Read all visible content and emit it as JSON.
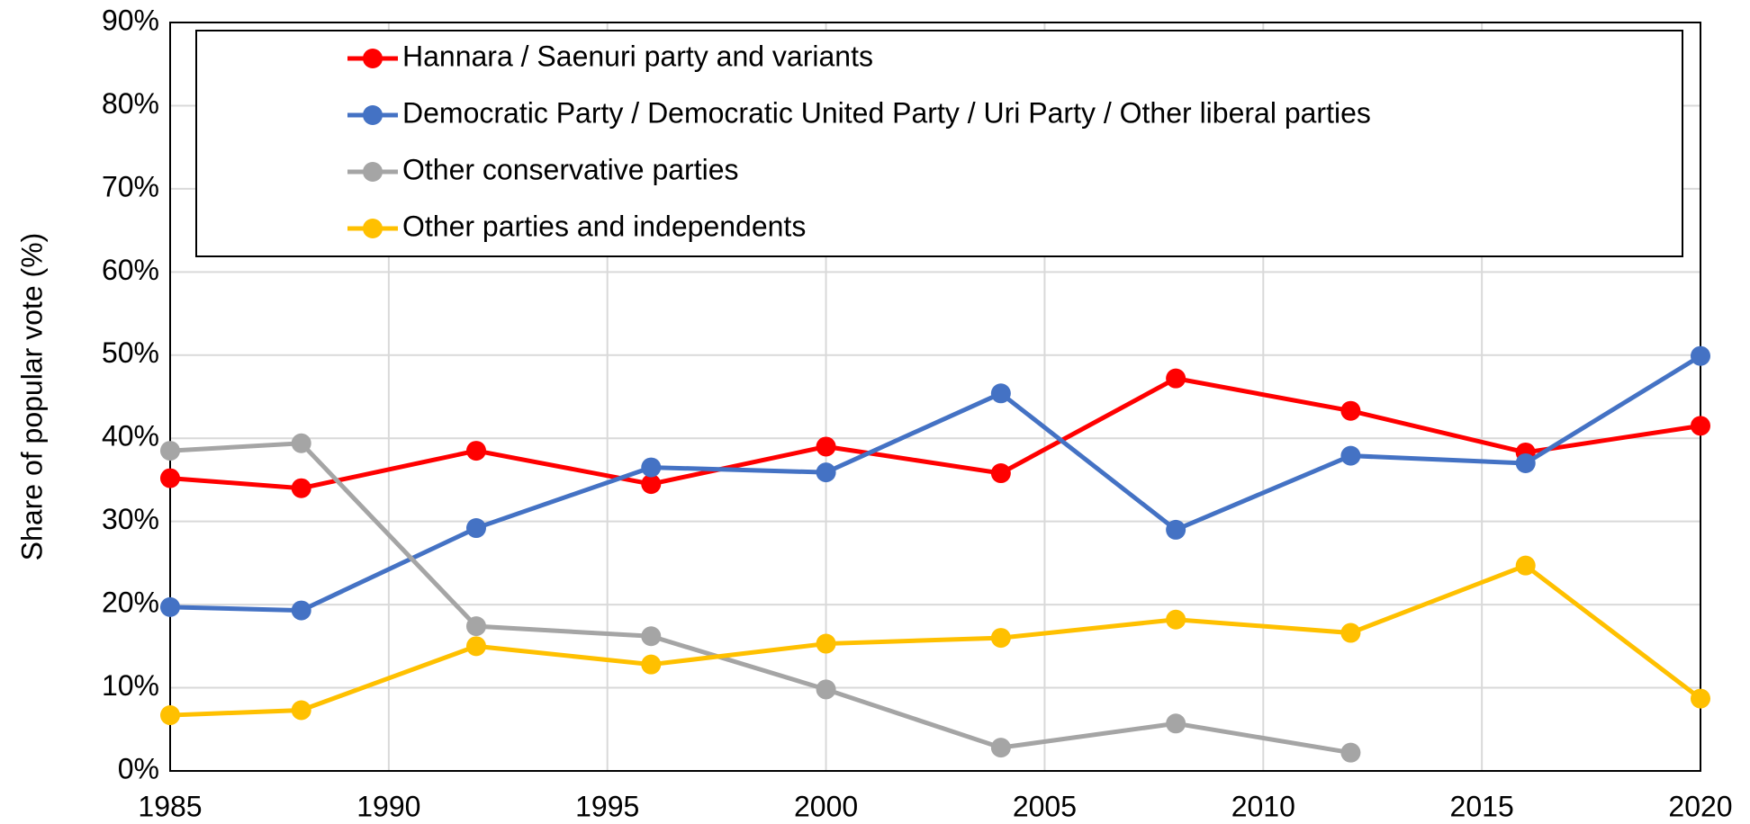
{
  "chart_data": {
    "type": "line",
    "y_label": "Share of popular vote (%)",
    "x": [
      1985,
      1988,
      1992,
      1996,
      2000,
      2004,
      2008,
      2012,
      2016,
      2020
    ],
    "series": [
      {
        "name": "Hannara / Saenuri party and variants",
        "color": "#ff0000",
        "values": [
          35.2,
          34.0,
          38.5,
          34.5,
          39.0,
          35.8,
          47.2,
          43.3,
          38.3,
          41.5
        ]
      },
      {
        "name": "Democratic Party / Democratic United Party / Uri Party / Other liberal parties",
        "color": "#4472c4",
        "values": [
          19.7,
          19.3,
          29.2,
          36.5,
          35.9,
          45.4,
          29.0,
          37.9,
          37.0,
          49.9
        ]
      },
      {
        "name": "Other conservative parties",
        "color": "#a5a5a5",
        "values": [
          38.5,
          39.4,
          17.4,
          16.2,
          9.8,
          2.8,
          5.7,
          2.2,
          null,
          null
        ]
      },
      {
        "name": "Other parties and independents",
        "color": "#ffc000",
        "values": [
          6.7,
          7.3,
          15.0,
          12.8,
          15.3,
          16.0,
          18.2,
          16.6,
          24.7,
          8.7
        ]
      }
    ],
    "xlim": [
      1985,
      2020
    ],
    "xticks": [
      1985,
      1990,
      1995,
      2000,
      2005,
      2010,
      2015,
      2020
    ],
    "ylim": [
      0,
      90
    ],
    "yticks": [
      {
        "value": 0,
        "label": "0%"
      },
      {
        "value": 10,
        "label": "10%"
      },
      {
        "value": 20,
        "label": "20%"
      },
      {
        "value": 30,
        "label": "30%"
      },
      {
        "value": 40,
        "label": "40%"
      },
      {
        "value": 50,
        "label": "50%"
      },
      {
        "value": 60,
        "label": "60%"
      },
      {
        "value": 70,
        "label": "70%"
      },
      {
        "value": 80,
        "label": "80%"
      },
      {
        "value": 90,
        "label": "90%"
      }
    ],
    "grid": true,
    "legend": "top"
  }
}
